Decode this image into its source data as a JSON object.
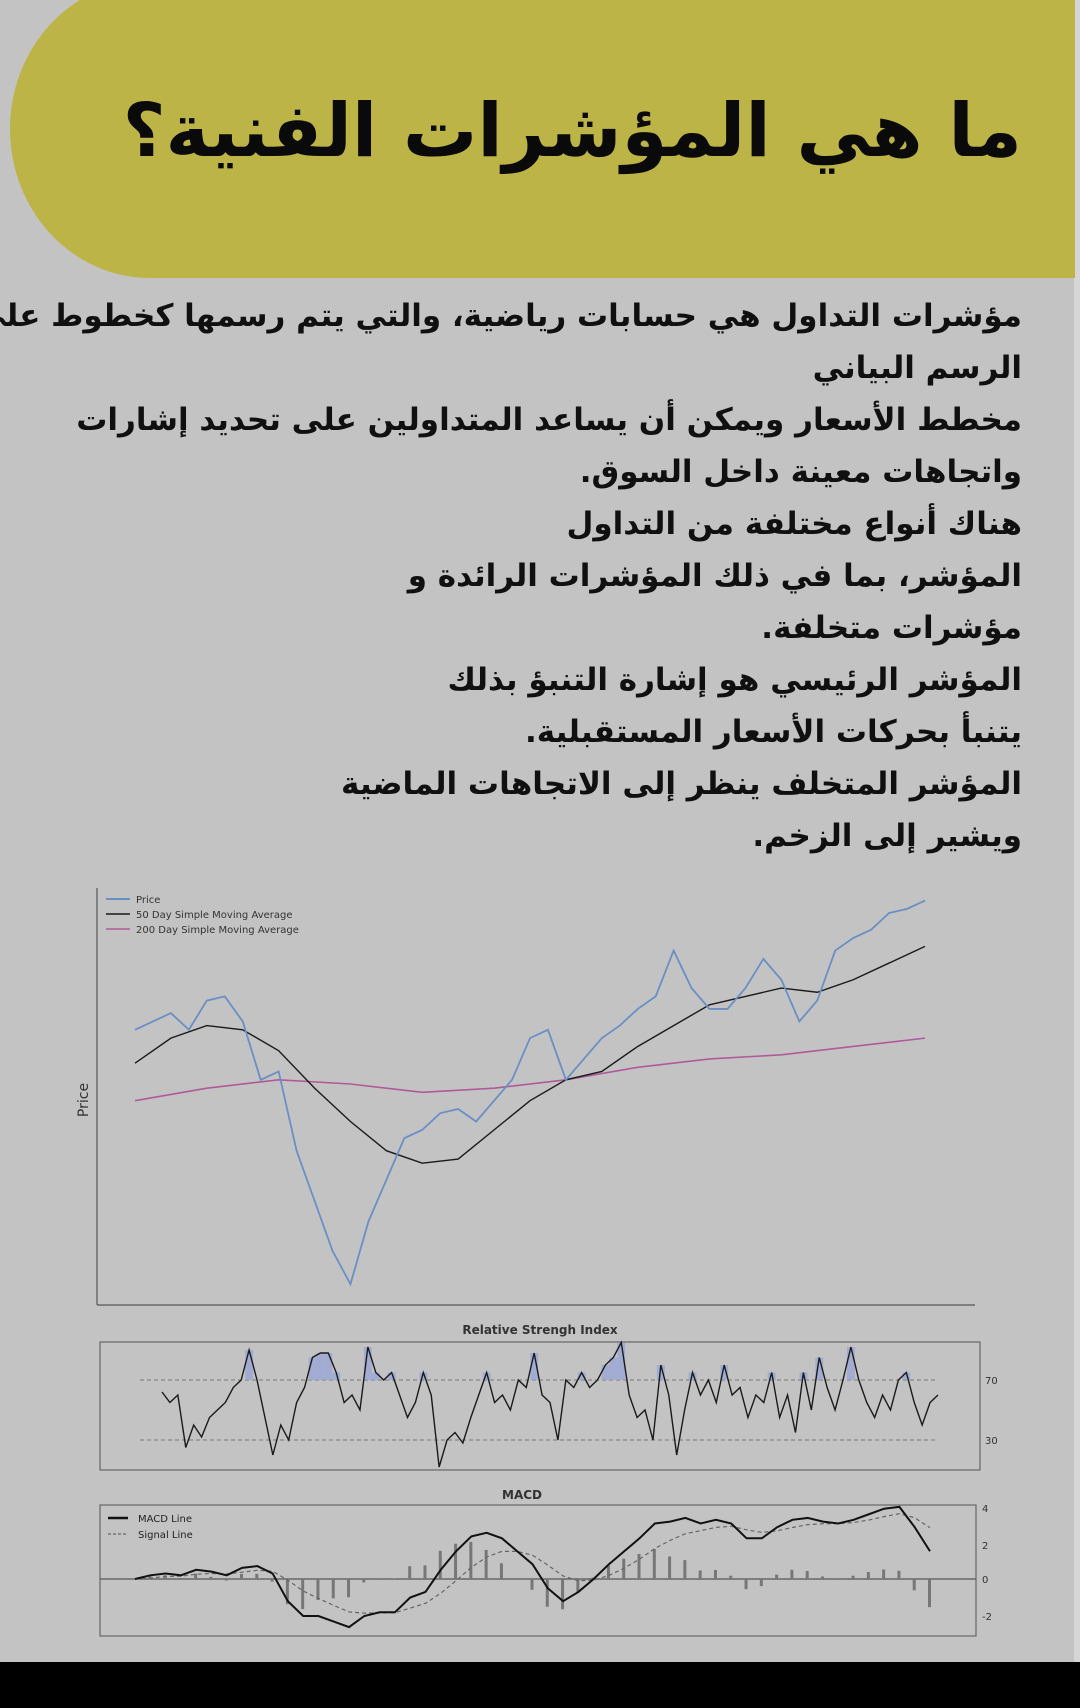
{
  "title": "ما هي المؤشرات الفنية؟",
  "paragraph_lines": [
    "مؤشرات التداول هي حسابات رياضية، والتي يتم رسمها كخطوط على",
    "الرسم البياني",
    "مخطط الأسعار ويمكن أن يساعد المتداولين على تحديد إشارات",
    "واتجاهات معينة داخل السوق.",
    "هناك أنواع مختلفة من التداول",
    "المؤشر، بما في ذلك المؤشرات الرائدة و",
    "مؤشرات متخلفة.",
    "المؤشر الرئيسي هو إشارة التنبؤ بذلك",
    "يتنبأ بحركات الأسعار المستقبلية.",
    "المؤشر المتخلف ينظر إلى الاتجاهات الماضية",
    "ويشير إلى الزخم."
  ],
  "colors": {
    "banner": "#bdb447",
    "background": "#c3c3c3",
    "price": "#6a8fc4",
    "sma50": "#1a1a1a",
    "sma200": "#b05a9a",
    "rsi_fill": "#9aa6d6"
  },
  "chart_data": [
    {
      "type": "line",
      "ylabel": "Price",
      "legend_position": "top-left",
      "series": [
        {
          "name": "Price",
          "values": [
            66,
            68,
            70,
            66,
            73,
            74,
            68,
            54,
            56,
            37,
            25,
            13,
            5,
            20,
            30,
            40,
            42,
            46,
            47,
            44,
            49,
            54,
            64,
            66,
            54,
            59,
            64,
            67,
            71,
            74,
            85,
            76,
            71,
            71,
            76,
            83,
            78,
            68,
            73,
            85,
            88,
            90,
            94,
            95,
            97
          ]
        },
        {
          "name": "50 Day Simple Moving Average",
          "values": [
            58,
            64,
            67,
            66,
            61,
            52,
            44,
            37,
            34,
            35,
            42,
            49,
            54,
            56,
            62,
            67,
            72,
            74,
            76,
            75,
            78,
            82,
            86
          ]
        },
        {
          "name": "200 Day Simple Moving Average",
          "values": [
            49,
            52,
            54,
            53,
            51,
            52,
            54,
            57,
            59,
            60,
            62,
            64
          ]
        }
      ]
    },
    {
      "type": "line",
      "title": "Relative Strengh Index",
      "yticks": [
        30,
        70
      ],
      "values": [
        62,
        55,
        60,
        25,
        40,
        32,
        45,
        50,
        55,
        65,
        70,
        90,
        70,
        45,
        20,
        40,
        30,
        55,
        65,
        85,
        88,
        88,
        75,
        55,
        60,
        50,
        92,
        75,
        70,
        75,
        60,
        45,
        55,
        75,
        60,
        12,
        30,
        35,
        28,
        45,
        60,
        75,
        55,
        60,
        50,
        70,
        65,
        88,
        60,
        55,
        30,
        70,
        65,
        75,
        65,
        70,
        80,
        85,
        95,
        60,
        45,
        50,
        30,
        80,
        60,
        20,
        50,
        75,
        60,
        70,
        55,
        80,
        60,
        65,
        45,
        60,
        55,
        75,
        45,
        60,
        35,
        75,
        50,
        85,
        65,
        50,
        70,
        92,
        70,
        55,
        45,
        60,
        50,
        70,
        75,
        55,
        40,
        55,
        60
      ]
    },
    {
      "type": "line",
      "title": "MACD",
      "yticks": [
        4,
        2,
        0,
        -2
      ],
      "series": [
        {
          "name": "MACD Line",
          "values": [
            0,
            0.2,
            0.3,
            0.2,
            0.5,
            0.4,
            0.2,
            0.6,
            0.7,
            0.3,
            -1.2,
            -2.0,
            -2.0,
            -2.3,
            -2.6,
            -2.0,
            -1.8,
            -1.8,
            -1.0,
            -0.7,
            0.5,
            1.5,
            2.3,
            2.5,
            2.2,
            1.5,
            0.8,
            -0.5,
            -1.2,
            -0.7,
            0,
            0.8,
            1.5,
            2.2,
            3.0,
            3.1,
            3.3,
            3.0,
            3.2,
            3.0,
            2.2,
            2.2,
            2.8,
            3.2,
            3.3,
            3.1,
            3.0,
            3.2,
            3.5,
            3.8,
            3.9,
            2.8,
            1.5
          ]
        },
        {
          "name": "Signal Line"
        }
      ]
    }
  ]
}
